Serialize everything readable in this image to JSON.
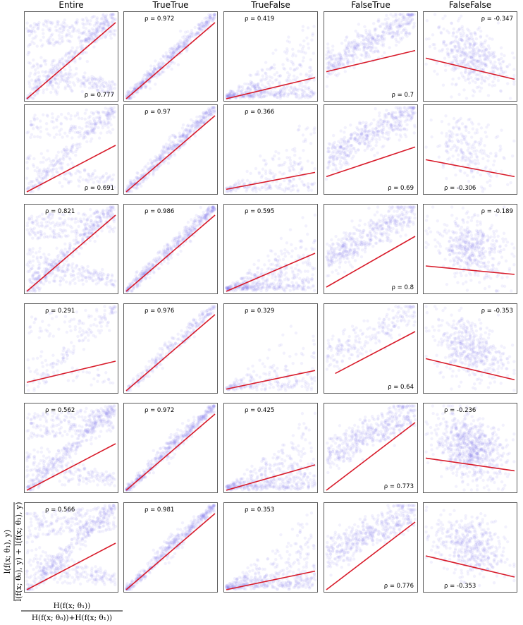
{
  "chart_data": {
    "type": "scatter",
    "columns": [
      "Entire",
      "TrueTrue",
      "TrueFalse",
      "FalseTrue",
      "FalseFalse"
    ],
    "rows": 6,
    "axis_x_label_num": "H(f(x; θ₁))",
    "axis_x_label_den": "H(f(x; θ₀))+H(f(x; θ₁))",
    "axis_y_label_num": "l(f(x; θ₁), y)",
    "axis_y_label_den": "l(f(x; θ₀), y) + l(f(x; θ₁), y)",
    "grid": false,
    "panels": [
      [
        {
          "rho": "ρ = 0.777",
          "label_pos": "bottom-right",
          "slope": 0.9,
          "intercept": 0.0,
          "line_x": [
            0.0,
            1.0
          ],
          "cloud": "entire_dense"
        },
        {
          "rho": "ρ = 0.972",
          "label_pos": "top-left",
          "slope": 0.9,
          "intercept": 0.0,
          "line_x": [
            0.0,
            1.0
          ],
          "cloud": "band"
        },
        {
          "rho": "ρ = 0.419",
          "label_pos": "top-left",
          "slope": 0.25,
          "intercept": 0.0,
          "line_x": [
            0.0,
            1.0
          ],
          "cloud": "triangle"
        },
        {
          "rho": "ρ = 0.7",
          "label_pos": "bottom-right",
          "slope": 0.25,
          "intercept": 0.32,
          "line_x": [
            0.0,
            1.0
          ],
          "cloud": "upper"
        },
        {
          "rho": "ρ = -0.347",
          "label_pos": "top-right",
          "slope": -0.25,
          "intercept": 0.48,
          "line_x": [
            0.0,
            1.0
          ],
          "cloud": "blob"
        }
      ],
      [
        {
          "rho": "ρ = 0.691",
          "label_pos": "bottom-right",
          "slope": 0.55,
          "intercept": 0.0,
          "line_x": [
            0.0,
            1.0
          ],
          "cloud": "entire"
        },
        {
          "rho": "ρ = 0.97",
          "label_pos": "top-left",
          "slope": 0.9,
          "intercept": 0.0,
          "line_x": [
            0.0,
            1.0
          ],
          "cloud": "band"
        },
        {
          "rho": "ρ = 0.366",
          "label_pos": "top-left",
          "slope": 0.2,
          "intercept": 0.03,
          "line_x": [
            0.0,
            1.0
          ],
          "cloud": "triangle_sparse"
        },
        {
          "rho": "ρ = 0.69",
          "label_pos": "bottom-right",
          "slope": 0.35,
          "intercept": 0.18,
          "line_x": [
            0.0,
            1.0
          ],
          "cloud": "upper"
        },
        {
          "rho": "ρ = -0.306",
          "label_pos": "bottom-left",
          "slope": -0.2,
          "intercept": 0.38,
          "line_x": [
            0.0,
            1.0
          ],
          "cloud": "blob_sparse"
        }
      ],
      [
        {
          "rho": "ρ = 0.821",
          "label_pos": "top-left",
          "slope": 0.9,
          "intercept": 0.0,
          "line_x": [
            0.0,
            1.0
          ],
          "cloud": "entire_dense"
        },
        {
          "rho": "ρ = 0.986",
          "label_pos": "top-left",
          "slope": 0.9,
          "intercept": 0.0,
          "line_x": [
            0.0,
            1.0
          ],
          "cloud": "band"
        },
        {
          "rho": "ρ = 0.595",
          "label_pos": "top-left",
          "slope": 0.45,
          "intercept": 0.0,
          "line_x": [
            0.0,
            1.0
          ],
          "cloud": "triangle"
        },
        {
          "rho": "ρ = 0.8",
          "label_pos": "bottom-right",
          "slope": 0.6,
          "intercept": 0.05,
          "line_x": [
            0.0,
            1.0
          ],
          "cloud": "upper"
        },
        {
          "rho": "ρ = -0.189",
          "label_pos": "top-right",
          "slope": -0.1,
          "intercept": 0.3,
          "line_x": [
            0.0,
            1.0
          ],
          "cloud": "blob"
        }
      ],
      [
        {
          "rho": "ρ = 0.291",
          "label_pos": "top-left",
          "slope": 0.25,
          "intercept": 0.1,
          "line_x": [
            0.0,
            1.0
          ],
          "cloud": "entire_sparse"
        },
        {
          "rho": "ρ = 0.976",
          "label_pos": "top-left",
          "slope": 0.9,
          "intercept": 0.0,
          "line_x": [
            0.0,
            1.0
          ],
          "cloud": "band_thin"
        },
        {
          "rho": "ρ = 0.329",
          "label_pos": "top-left",
          "slope": 0.22,
          "intercept": 0.02,
          "line_x": [
            0.0,
            1.0
          ],
          "cloud": "triangle_sparse"
        },
        {
          "rho": "ρ = 0.64",
          "label_pos": "bottom-right",
          "slope": 0.55,
          "intercept": 0.15,
          "line_x": [
            0.1,
            1.0
          ],
          "cloud": "upper_sparse"
        },
        {
          "rho": "ρ = -0.353",
          "label_pos": "top-right",
          "slope": -0.25,
          "intercept": 0.38,
          "line_x": [
            0.0,
            1.0
          ],
          "cloud": "blob"
        }
      ],
      [
        {
          "rho": "ρ = 0.562",
          "label_pos": "top-left",
          "slope": 0.55,
          "intercept": 0.0,
          "line_x": [
            0.0,
            1.0
          ],
          "cloud": "entire_dense"
        },
        {
          "rho": "ρ = 0.972",
          "label_pos": "top-left",
          "slope": 0.9,
          "intercept": 0.0,
          "line_x": [
            0.0,
            1.0
          ],
          "cloud": "band"
        },
        {
          "rho": "ρ = 0.425",
          "label_pos": "top-left",
          "slope": 0.3,
          "intercept": 0.0,
          "line_x": [
            0.0,
            1.0
          ],
          "cloud": "triangle"
        },
        {
          "rho": "ρ = 0.773",
          "label_pos": "bottom-right",
          "slope": 0.8,
          "intercept": 0.0,
          "line_x": [
            0.0,
            1.0
          ],
          "cloud": "upper"
        },
        {
          "rho": "ρ = -0.236",
          "label_pos": "top-left",
          "slope": -0.15,
          "intercept": 0.38,
          "line_x": [
            0.0,
            1.0
          ],
          "cloud": "blob_dense"
        }
      ],
      [
        {
          "rho": "ρ = 0.566",
          "label_pos": "top-left",
          "slope": 0.55,
          "intercept": 0.0,
          "line_x": [
            0.0,
            1.0
          ],
          "cloud": "entire_dense"
        },
        {
          "rho": "ρ = 0.981",
          "label_pos": "top-left",
          "slope": 0.9,
          "intercept": 0.0,
          "line_x": [
            0.0,
            1.0
          ],
          "cloud": "band"
        },
        {
          "rho": "ρ = 0.353",
          "label_pos": "top-left",
          "slope": 0.22,
          "intercept": 0.0,
          "line_x": [
            0.0,
            1.0
          ],
          "cloud": "triangle"
        },
        {
          "rho": "ρ = 0.776",
          "label_pos": "bottom-right",
          "slope": 0.8,
          "intercept": 0.0,
          "line_x": [
            0.0,
            1.0
          ],
          "cloud": "upper"
        },
        {
          "rho": "ρ = -0.353",
          "label_pos": "bottom-left",
          "slope": -0.25,
          "intercept": 0.4,
          "line_x": [
            0.0,
            1.0
          ],
          "cloud": "blob"
        }
      ]
    ]
  },
  "colors": {
    "scatter": "#7b78ee",
    "fit_line": "#d81b2a",
    "frame": "#333333"
  }
}
